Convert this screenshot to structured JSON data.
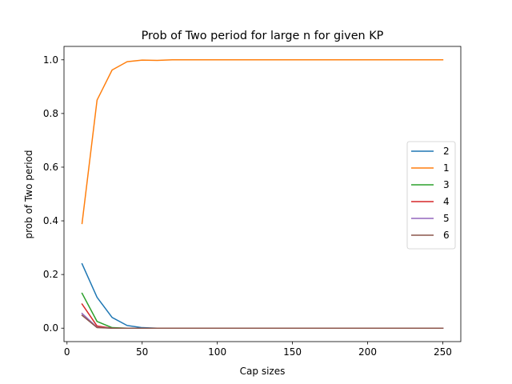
{
  "chart_data": {
    "type": "line",
    "title": "Prob of Two period for large n for given KP",
    "xlabel": "Cap sizes",
    "ylabel": "prob of Two period",
    "xlim": [
      -2,
      262
    ],
    "ylim": [
      -0.05,
      1.05
    ],
    "xticks": [
      0,
      50,
      100,
      150,
      200,
      250
    ],
    "yticks": [
      0.0,
      0.2,
      0.4,
      0.6,
      0.8,
      1.0
    ],
    "ytick_labels": [
      "0.0",
      "0.2",
      "0.4",
      "0.6",
      "0.8",
      "1.0"
    ],
    "grid": false,
    "legend_position": "center-right",
    "x": [
      10,
      20,
      30,
      40,
      50,
      60,
      70,
      80,
      90,
      100,
      110,
      120,
      130,
      140,
      150,
      160,
      170,
      180,
      190,
      200,
      210,
      220,
      230,
      240,
      250
    ],
    "series": [
      {
        "name": "2",
        "color": "#1f77b4",
        "values": [
          0.24,
          0.115,
          0.04,
          0.01,
          0.002,
          0.0,
          0.0,
          0.0,
          0.0,
          0.0,
          0.0,
          0.0,
          0.0,
          0.0,
          0.0,
          0.0,
          0.0,
          0.0,
          0.0,
          0.0,
          0.0,
          0.0,
          0.0,
          0.0,
          0.0
        ]
      },
      {
        "name": "1",
        "color": "#ff7f0e",
        "values": [
          0.39,
          0.85,
          0.962,
          0.993,
          0.999,
          0.998,
          1.0,
          1.0,
          1.0,
          1.0,
          1.0,
          1.0,
          1.0,
          1.0,
          1.0,
          1.0,
          1.0,
          1.0,
          1.0,
          1.0,
          1.0,
          1.0,
          1.0,
          1.0,
          1.0
        ]
      },
      {
        "name": "3",
        "color": "#2ca02c",
        "values": [
          0.13,
          0.025,
          0.002,
          0.0,
          0.0,
          0.0,
          0.0,
          0.0,
          0.0,
          0.0,
          0.0,
          0.0,
          0.0,
          0.0,
          0.0,
          0.0,
          0.0,
          0.0,
          0.0,
          0.0,
          0.0,
          0.0,
          0.0,
          0.0,
          0.0
        ]
      },
      {
        "name": "4",
        "color": "#d62728",
        "values": [
          0.09,
          0.008,
          0.0,
          0.0,
          0.0,
          0.0,
          0.0,
          0.0,
          0.0,
          0.0,
          0.0,
          0.0,
          0.0,
          0.0,
          0.0,
          0.0,
          0.0,
          0.0,
          0.0,
          0.0,
          0.0,
          0.0,
          0.0,
          0.0,
          0.0
        ]
      },
      {
        "name": "5",
        "color": "#9467bd",
        "values": [
          0.055,
          0.003,
          0.0,
          0.0,
          0.0,
          0.0,
          0.0,
          0.0,
          0.0,
          0.0,
          0.0,
          0.0,
          0.0,
          0.0,
          0.0,
          0.0,
          0.0,
          0.0,
          0.0,
          0.0,
          0.0,
          0.0,
          0.0,
          0.0,
          0.0
        ]
      },
      {
        "name": "6",
        "color": "#8c564b",
        "values": [
          0.048,
          0.002,
          0.0,
          0.0,
          0.0,
          0.0,
          0.0,
          0.0,
          0.0,
          0.0,
          0.0,
          0.0,
          0.0,
          0.0,
          0.0,
          0.0,
          0.0,
          0.0,
          0.0,
          0.0,
          0.0,
          0.0,
          0.0,
          0.0,
          0.0
        ]
      }
    ]
  }
}
